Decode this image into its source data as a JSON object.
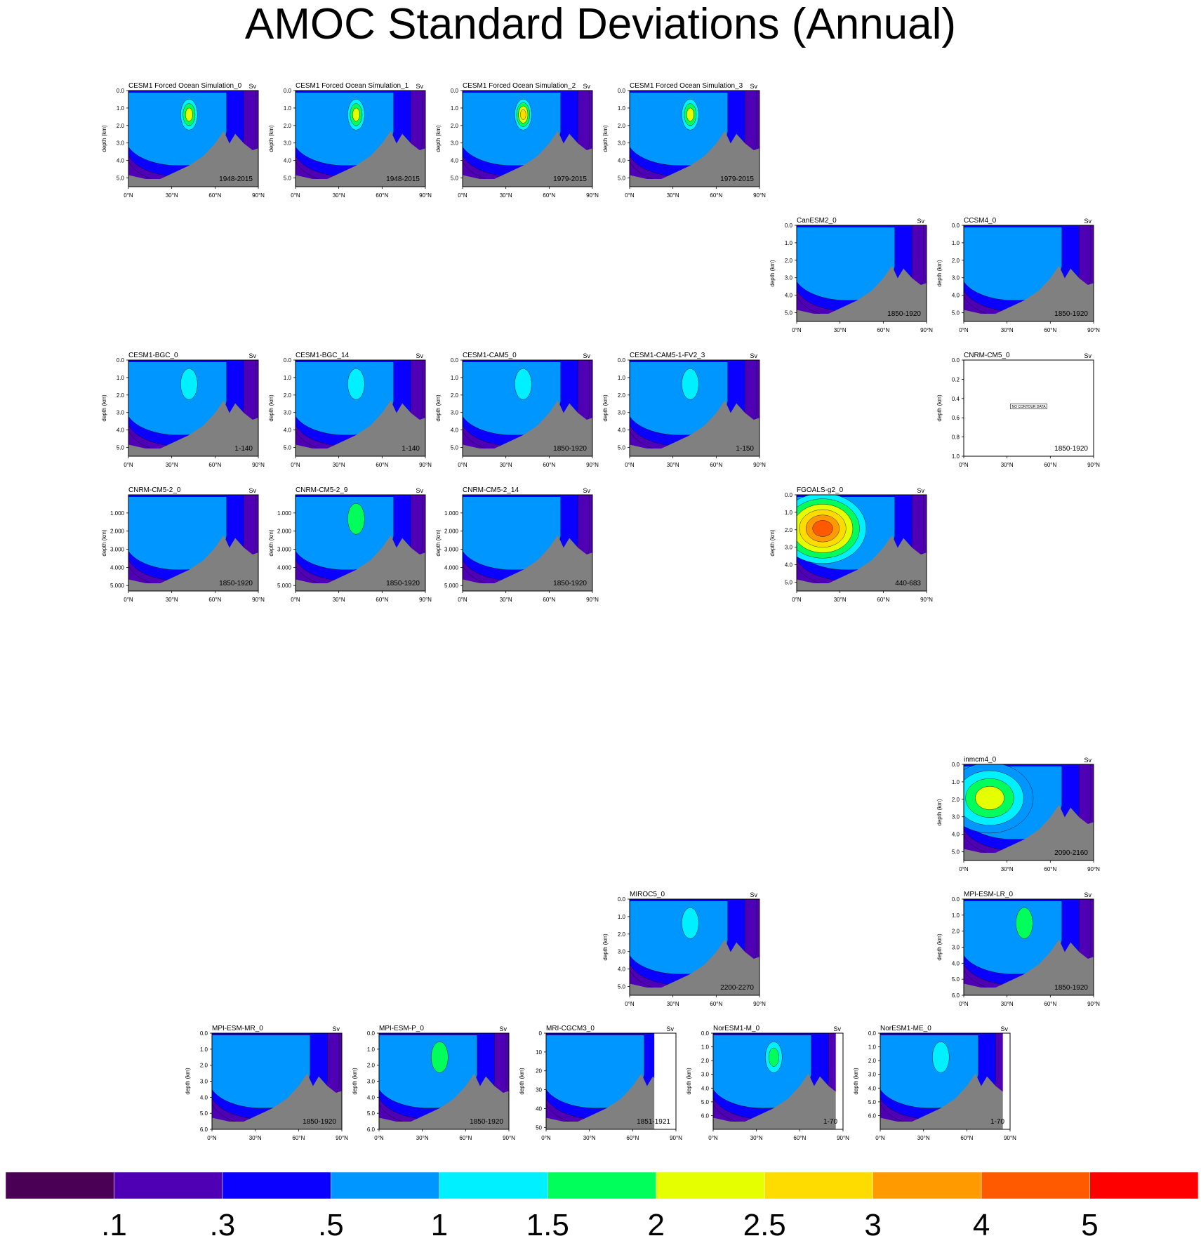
{
  "title": "AMOC Standard Deviations (Annual)",
  "colors": {
    "levels": [
      "#4a0055",
      "#5000b4",
      "#0a00ff",
      "#0096ff",
      "#00f0ff",
      "#00ff5a",
      "#e6ff00",
      "#ffdc00",
      "#ff9b00",
      "#ff5a00",
      "#ff0000"
    ],
    "land": "#808080",
    "frame": "#000000"
  },
  "colorbar_labels": [
    ".1",
    ".3",
    ".5",
    "1",
    "1.5",
    "2",
    "2.5",
    "3",
    "4",
    "5"
  ],
  "chart_data": [
    {
      "type": "heatmap",
      "title": "CESM1 Forced Ocean Simulation_0",
      "units": "Sv",
      "period": "1948-2015",
      "ylabel": "depth (km)",
      "xticks": [
        "0°N",
        "30°N",
        "60°N",
        "90°N"
      ],
      "yticks": [
        "0.0",
        "1.0",
        "2.0",
        "3.0",
        "4.0",
        "5.0"
      ],
      "ymax": 5.5,
      "core_level": 5,
      "extra_levels": [
        4,
        5,
        6
      ],
      "regime": "deep",
      "nodata": false
    },
    {
      "type": "heatmap",
      "title": "CESM1 Forced Ocean Simulation_1",
      "units": "Sv",
      "period": "1948-2015",
      "ylabel": "depth (km)",
      "xticks": [
        "0°N",
        "30°N",
        "60°N",
        "90°N"
      ],
      "yticks": [
        "0.0",
        "1.0",
        "2.0",
        "3.0",
        "4.0",
        "5.0"
      ],
      "ymax": 5.5,
      "core_level": 5,
      "extra_levels": [
        4,
        5,
        6
      ],
      "regime": "deep",
      "nodata": false
    },
    {
      "type": "heatmap",
      "title": "CESM1 Forced Ocean Simulation_2",
      "units": "Sv",
      "period": "1979-2015",
      "ylabel": "depth (km)",
      "xticks": [
        "0°N",
        "30°N",
        "60°N",
        "90°N"
      ],
      "yticks": [
        "0.0",
        "1.0",
        "2.0",
        "3.0",
        "4.0",
        "5.0"
      ],
      "ymax": 5.5,
      "core_level": 5,
      "extra_levels": [
        4,
        5,
        6,
        7
      ],
      "regime": "deep",
      "nodata": false
    },
    {
      "type": "heatmap",
      "title": "CESM1 Forced Ocean Simulation_3",
      "units": "Sv",
      "period": "1979-2015",
      "ylabel": "depth (km)",
      "xticks": [
        "0°N",
        "30°N",
        "60°N",
        "90°N"
      ],
      "yticks": [
        "0.0",
        "1.0",
        "2.0",
        "3.0",
        "4.0",
        "5.0"
      ],
      "ymax": 5.5,
      "core_level": 5,
      "extra_levels": [
        4,
        5,
        6
      ],
      "regime": "deep",
      "nodata": false
    },
    {
      "type": "heatmap",
      "title": "CanESM2_0",
      "units": "Sv",
      "period": "1850-1920",
      "ylabel": "depth (km)",
      "xticks": [
        "0°N",
        "30°N",
        "60°N",
        "90°N"
      ],
      "yticks": [
        "0.0",
        "1.0",
        "2.0",
        "3.0",
        "4.0",
        "5.0"
      ],
      "ymax": 5.5,
      "core_level": 3,
      "extra_levels": [],
      "regime": "deep",
      "nodata": false
    },
    {
      "type": "heatmap",
      "title": "CCSM4_0",
      "units": "Sv",
      "period": "1850-1920",
      "ylabel": "depth (km)",
      "xticks": [
        "0°N",
        "30°N",
        "60°N",
        "90°N"
      ],
      "yticks": [
        "0.0",
        "1.0",
        "2.0",
        "3.0",
        "4.0",
        "5.0"
      ],
      "ymax": 5.5,
      "core_level": 3,
      "extra_levels": [],
      "regime": "deep",
      "nodata": false
    },
    {
      "type": "heatmap",
      "title": "CESM1-BGC_0",
      "units": "Sv",
      "period": "1-140",
      "ylabel": "depth (km)",
      "xticks": [
        "0°N",
        "30°N",
        "60°N",
        "90°N"
      ],
      "yticks": [
        "0.0",
        "1.0",
        "2.0",
        "3.0",
        "4.0",
        "5.0"
      ],
      "ymax": 5.5,
      "core_level": 3,
      "extra_levels": [
        4
      ],
      "regime": "deep",
      "nodata": false
    },
    {
      "type": "heatmap",
      "title": "CESM1-BGC_14",
      "units": "Sv",
      "period": "1-140",
      "ylabel": "depth (km)",
      "xticks": [
        "0°N",
        "30°N",
        "60°N",
        "90°N"
      ],
      "yticks": [
        "0.0",
        "1.0",
        "2.0",
        "3.0",
        "4.0",
        "5.0"
      ],
      "ymax": 5.5,
      "core_level": 3,
      "extra_levels": [
        4
      ],
      "regime": "deep",
      "nodata": false
    },
    {
      "type": "heatmap",
      "title": "CESM1-CAM5_0",
      "units": "Sv",
      "period": "1850-1920",
      "ylabel": "depth (km)",
      "xticks": [
        "0°N",
        "30°N",
        "60°N",
        "90°N"
      ],
      "yticks": [
        "0.0",
        "1.0",
        "2.0",
        "3.0",
        "4.0",
        "5.0"
      ],
      "ymax": 5.5,
      "core_level": 3,
      "extra_levels": [
        4
      ],
      "regime": "deep",
      "nodata": false
    },
    {
      "type": "heatmap",
      "title": "CESM1-CAM5-1-FV2_3",
      "units": "Sv",
      "period": "1-150",
      "ylabel": "depth (km)",
      "xticks": [
        "0°N",
        "30°N",
        "60°N",
        "90°N"
      ],
      "yticks": [
        "0.0",
        "1.0",
        "2.0",
        "3.0",
        "4.0",
        "5.0"
      ],
      "ymax": 5.5,
      "core_level": 3,
      "extra_levels": [
        4
      ],
      "regime": "deep",
      "nodata": false
    },
    {
      "type": "heatmap",
      "title": "CNRM-CM5_0",
      "units": "Sv",
      "period": "1850-1920",
      "ylabel": "depth (km)",
      "xticks": [
        "0°N",
        "30°N",
        "60°N",
        "90°N"
      ],
      "yticks": [
        "0.0",
        "0.2",
        "0.4",
        "0.6",
        "0.8",
        "1.0"
      ],
      "ymax": 1.0,
      "core_level": 0,
      "extra_levels": [],
      "regime": "deep",
      "nodata": true,
      "nodata_label": "NO CONTOUR DATA"
    },
    {
      "type": "heatmap",
      "title": "CNRM-CM5-2_0",
      "units": "Sv",
      "period": "1850-1920",
      "ylabel": "depth (km)",
      "xticks": [
        "0°N",
        "30°N",
        "60°N",
        "90°N"
      ],
      "yticks": [
        "1.000",
        "2.000",
        "3.000",
        "4.000",
        "5.000"
      ],
      "ymax": 5.3,
      "ytick_start": 1,
      "core_level": 3,
      "extra_levels": [],
      "regime": "deep",
      "nodata": false
    },
    {
      "type": "heatmap",
      "title": "CNRM-CM5-2_9",
      "units": "Sv",
      "period": "1850-1920",
      "ylabel": "depth (km)",
      "xticks": [
        "0°N",
        "30°N",
        "60°N",
        "90°N"
      ],
      "yticks": [
        "1.000",
        "2.000",
        "3.000",
        "4.000",
        "5.000"
      ],
      "ymax": 5.3,
      "ytick_start": 1,
      "core_level": 4,
      "extra_levels": [
        5
      ],
      "regime": "deep",
      "nodata": false
    },
    {
      "type": "heatmap",
      "title": "CNRM-CM5-2_14",
      "units": "Sv",
      "period": "1850-1920",
      "ylabel": "depth (km)",
      "xticks": [
        "0°N",
        "30°N",
        "60°N",
        "90°N"
      ],
      "yticks": [
        "1.000",
        "2.000",
        "3.000",
        "4.000",
        "5.000"
      ],
      "ymax": 5.3,
      "ytick_start": 1,
      "core_level": 3,
      "extra_levels": [],
      "regime": "deep",
      "nodata": false
    },
    {
      "type": "heatmap",
      "title": "FGOALS-g2_0",
      "units": "Sv",
      "period": "440-683",
      "ylabel": "depth (km)",
      "xticks": [
        "0°N",
        "30°N",
        "60°N",
        "90°N"
      ],
      "yticks": [
        "0.0",
        "1.0",
        "2.0",
        "3.0",
        "4.0",
        "5.0"
      ],
      "ymax": 5.5,
      "core_level": 8,
      "extra_levels": [
        4,
        5,
        6,
        7,
        8,
        9
      ],
      "regime": "strong",
      "nodata": false
    },
    {
      "type": "heatmap",
      "title": "inmcm4_0",
      "units": "Sv",
      "period": "2090-2160",
      "ylabel": "depth (km)",
      "xticks": [
        "0°N",
        "30°N",
        "60°N",
        "90°N"
      ],
      "yticks": [
        "0.0",
        "1.0",
        "2.0",
        "3.0",
        "4.0",
        "5.0"
      ],
      "ymax": 5.5,
      "core_level": 6,
      "extra_levels": [
        3,
        4,
        5,
        6
      ],
      "regime": "strong",
      "nodata": false
    },
    {
      "type": "heatmap",
      "title": "MIROC5_0",
      "units": "Sv",
      "period": "2200-2270",
      "ylabel": "depth (km)",
      "xticks": [
        "0°N",
        "30°N",
        "60°N",
        "90°N"
      ],
      "yticks": [
        "0.0",
        "1.0",
        "2.0",
        "3.0",
        "4.0",
        "5.0"
      ],
      "ymax": 5.5,
      "core_level": 3,
      "extra_levels": [
        4
      ],
      "regime": "deep",
      "nodata": false
    },
    {
      "type": "heatmap",
      "title": "MPI-ESM-LR_0",
      "units": "Sv",
      "period": "1850-1920",
      "ylabel": "depth (km)",
      "xticks": [
        "0°N",
        "30°N",
        "60°N",
        "90°N"
      ],
      "yticks": [
        "0.0",
        "1.0",
        "2.0",
        "3.0",
        "4.0",
        "5.0",
        "6.0"
      ],
      "ymax": 6.0,
      "core_level": 4,
      "extra_levels": [
        5
      ],
      "regime": "deep",
      "nodata": false
    },
    {
      "type": "heatmap",
      "title": "MPI-ESM-MR_0",
      "units": "Sv",
      "period": "1850-1920",
      "ylabel": "depth (km)",
      "xticks": [
        "0°N",
        "30°N",
        "60°N",
        "90°N"
      ],
      "yticks": [
        "0.0",
        "1.0",
        "2.0",
        "3.0",
        "4.0",
        "5.0",
        "6.0"
      ],
      "ymax": 6.0,
      "core_level": 4,
      "extra_levels": [],
      "regime": "deep",
      "nodata": false
    },
    {
      "type": "heatmap",
      "title": "MPI-ESM-P_0",
      "units": "Sv",
      "period": "1850-1920",
      "ylabel": "depth (km)",
      "xticks": [
        "0°N",
        "30°N",
        "60°N",
        "90°N"
      ],
      "yticks": [
        "0.0",
        "1.0",
        "2.0",
        "3.0",
        "4.0",
        "5.0",
        "6.0"
      ],
      "ymax": 6.0,
      "core_level": 4,
      "extra_levels": [
        5
      ],
      "regime": "deep",
      "nodata": false
    },
    {
      "type": "heatmap",
      "title": "MRI-CGCM3_0",
      "units": "Sv",
      "period": "1851-1921",
      "ylabel": "depth (km)",
      "xticks": [
        "0°N",
        "30°N",
        "60°N",
        "90°N"
      ],
      "yticks": [
        "0",
        "10",
        "20",
        "30",
        "40",
        "50"
      ],
      "ymax": 51,
      "core_level": 3,
      "extra_levels": [],
      "regime": "deep",
      "nodata": false,
      "blank_north_of": 75
    },
    {
      "type": "heatmap",
      "title": "NorESM1-M_0",
      "units": "Sv",
      "period": "1-70",
      "ylabel": "depth (km)",
      "xticks": [
        "0°N",
        "30°N",
        "60°N",
        "90°N"
      ],
      "yticks": [
        "0.0",
        "1.0",
        "2.0",
        "3.0",
        "4.0",
        "5.0",
        "6.0"
      ],
      "ymax": 7.0,
      "core_level": 3,
      "extra_levels": [
        4,
        5
      ],
      "regime": "deep",
      "nodata": false,
      "blank_north_of": 85
    },
    {
      "type": "heatmap",
      "title": "NorESM1-ME_0",
      "units": "Sv",
      "period": "1-70",
      "ylabel": "depth (km)",
      "xticks": [
        "0°N",
        "30°N",
        "60°N",
        "90°N"
      ],
      "yticks": [
        "0.0",
        "1.0",
        "2.0",
        "3.0",
        "4.0",
        "5.0",
        "6.0"
      ],
      "ymax": 7.0,
      "core_level": 3,
      "extra_levels": [
        4
      ],
      "regime": "deep",
      "nodata": false,
      "blank_north_of": 85
    }
  ]
}
